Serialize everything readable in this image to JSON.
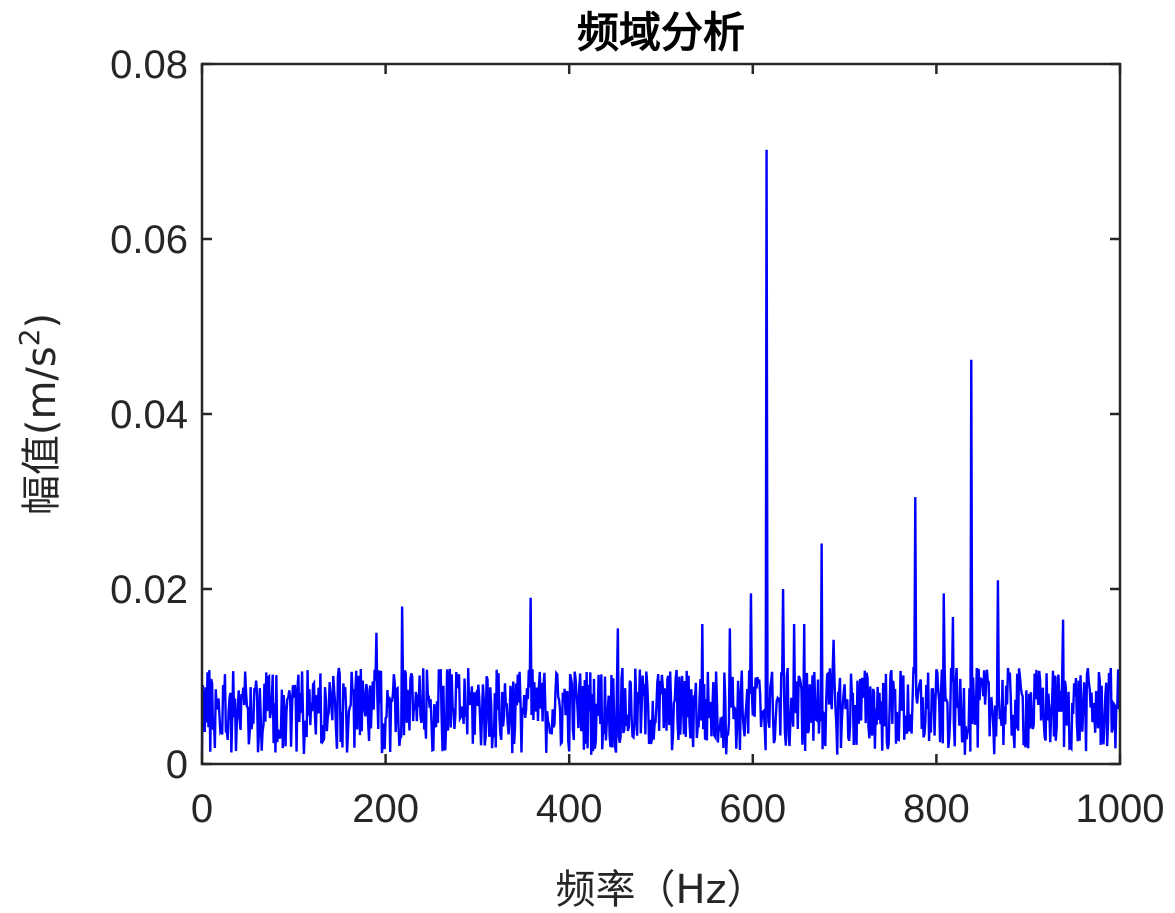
{
  "chart_data": {
    "type": "line",
    "title": "频域分析",
    "xlabel": "频率（Hz）",
    "ylabel": "幅值(m/s",
    "ylabel_superscript": "2",
    "ylabel_suffix": ")",
    "xlim": [
      0,
      1000
    ],
    "ylim": [
      0,
      0.08
    ],
    "x_ticks": [
      0,
      200,
      400,
      600,
      800,
      1000
    ],
    "y_ticks": [
      0,
      0.02,
      0.04,
      0.06,
      0.08
    ],
    "x_tick_labels": [
      "0",
      "200",
      "400",
      "600",
      "800",
      "1000"
    ],
    "y_tick_labels": [
      "0",
      "0.02",
      "0.04",
      "0.06",
      "0.08"
    ],
    "grid": false,
    "series": [
      {
        "color": "#0000ff",
        "noise_floor": {
          "x_start": 0,
          "x_end": 1000,
          "step": 1,
          "min": 0.001,
          "max": 0.011
        },
        "peaks": [
          {
            "x": 190,
            "y": 0.015
          },
          {
            "x": 218,
            "y": 0.018
          },
          {
            "x": 358,
            "y": 0.019
          },
          {
            "x": 453,
            "y": 0.0155
          },
          {
            "x": 545,
            "y": 0.016
          },
          {
            "x": 575,
            "y": 0.0155
          },
          {
            "x": 598,
            "y": 0.0195
          },
          {
            "x": 615,
            "y": 0.0702
          },
          {
            "x": 633,
            "y": 0.02
          },
          {
            "x": 645,
            "y": 0.016
          },
          {
            "x": 656,
            "y": 0.016
          },
          {
            "x": 675,
            "y": 0.0252
          },
          {
            "x": 688,
            "y": 0.0142
          },
          {
            "x": 777,
            "y": 0.0305
          },
          {
            "x": 808,
            "y": 0.0195
          },
          {
            "x": 818,
            "y": 0.0168
          },
          {
            "x": 838,
            "y": 0.0462
          },
          {
            "x": 867,
            "y": 0.021
          },
          {
            "x": 938,
            "y": 0.0165
          }
        ]
      }
    ]
  }
}
